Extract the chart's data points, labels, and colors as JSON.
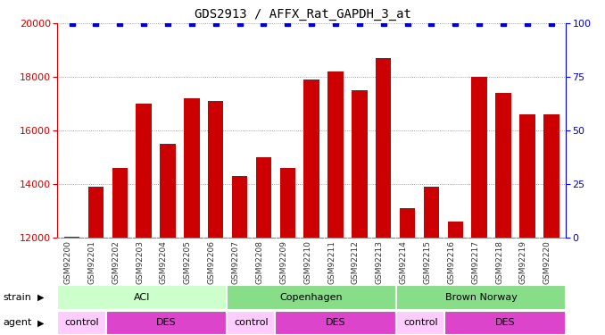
{
  "title": "GDS2913 / AFFX_Rat_GAPDH_3_at",
  "samples": [
    "GSM92200",
    "GSM92201",
    "GSM92202",
    "GSM92203",
    "GSM92204",
    "GSM92205",
    "GSM92206",
    "GSM92207",
    "GSM92208",
    "GSM92209",
    "GSM92210",
    "GSM92211",
    "GSM92212",
    "GSM92213",
    "GSM92214",
    "GSM92215",
    "GSM92216",
    "GSM92217",
    "GSM92218",
    "GSM92219",
    "GSM92220"
  ],
  "counts": [
    12050,
    13900,
    14600,
    17000,
    15500,
    17200,
    17100,
    14300,
    15000,
    14600,
    17900,
    18200,
    17500,
    18700,
    13100,
    13900,
    12600,
    18000,
    17400,
    16600,
    16600
  ],
  "bar_color": "#cc0000",
  "percentile_color": "#0000cc",
  "ylim_left": [
    12000,
    20000
  ],
  "ylim_right": [
    0,
    100
  ],
  "yticks_left": [
    12000,
    14000,
    16000,
    18000,
    20000
  ],
  "yticks_right": [
    0,
    25,
    50,
    75,
    100
  ],
  "strain_data": [
    {
      "label": "ACI",
      "start": 0,
      "end": 7,
      "color": "#ccffcc"
    },
    {
      "label": "Copenhagen",
      "start": 7,
      "end": 14,
      "color": "#88dd88"
    },
    {
      "label": "Brown Norway",
      "start": 14,
      "end": 21,
      "color": "#88dd88"
    }
  ],
  "agent_data": [
    {
      "label": "control",
      "start": 0,
      "end": 2,
      "color": "#ffccff"
    },
    {
      "label": "DES",
      "start": 2,
      "end": 7,
      "color": "#dd44cc"
    },
    {
      "label": "control",
      "start": 7,
      "end": 9,
      "color": "#ffccff"
    },
    {
      "label": "DES",
      "start": 9,
      "end": 14,
      "color": "#dd44cc"
    },
    {
      "label": "control",
      "start": 14,
      "end": 16,
      "color": "#ffccff"
    },
    {
      "label": "DES",
      "start": 16,
      "end": 21,
      "color": "#dd44cc"
    }
  ],
  "left_axis_color": "#cc0000",
  "right_axis_color": "#0000cc",
  "grid_color": "#888888",
  "tick_label_bg": "#cccccc",
  "tick_label_color": "#333333"
}
